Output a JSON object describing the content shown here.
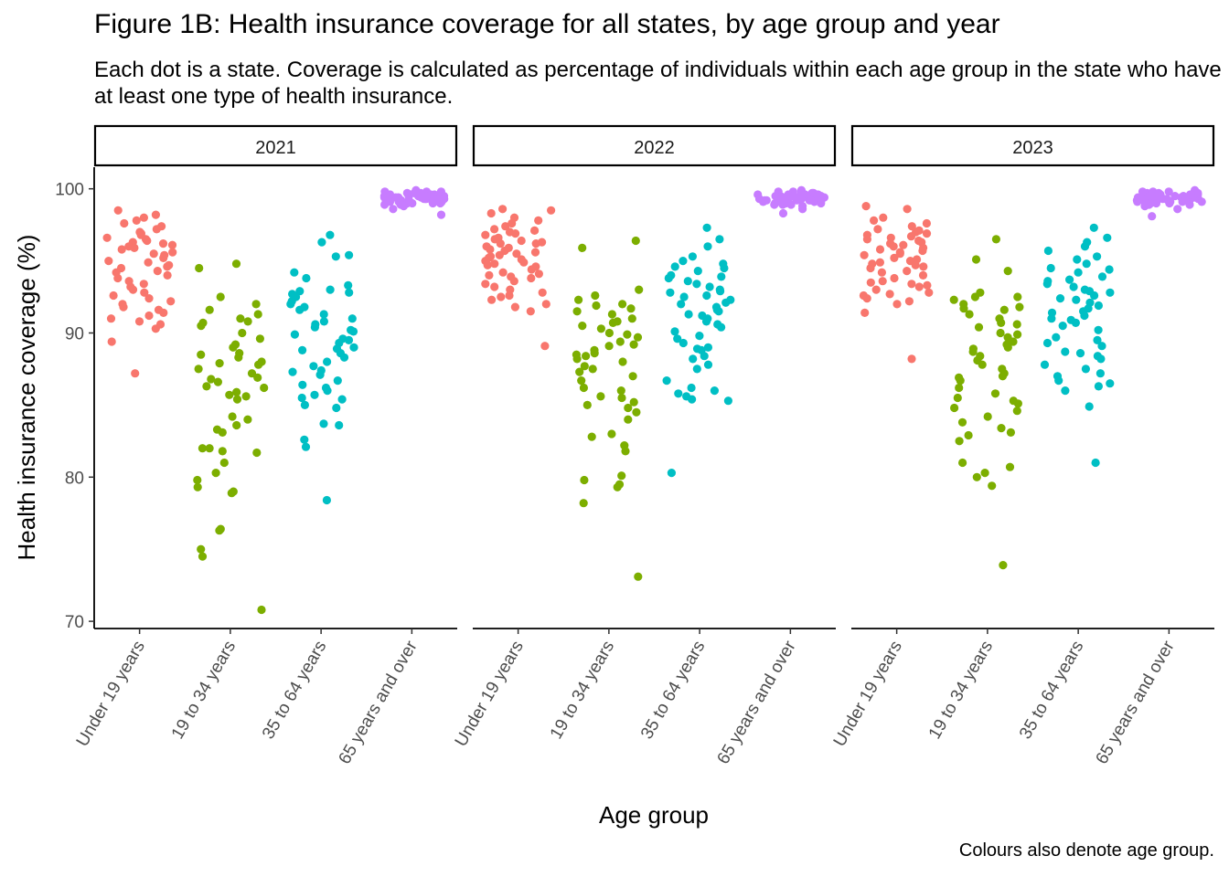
{
  "title": "Figure 1B: Health insurance coverage for all states, by age group and year",
  "subtitle": "Each dot is a state. Coverage is calculated as percentage of individuals within each age group in the state who have at least one type of health insurance.",
  "caption": "Colours also denote age group.",
  "chart_data": {
    "type": "scatter",
    "xlabel": "Age group",
    "ylabel": "Health insurance coverage (%)",
    "ylim": [
      69.5,
      101.5
    ],
    "yticks": [
      70,
      80,
      90,
      100
    ],
    "categories": [
      "Under 19 years",
      "19 to 34 years",
      "35 to 64 years",
      "65 years and over"
    ],
    "colors": [
      "#F8766D",
      "#7CAE00",
      "#00BFC4",
      "#C77CFF"
    ],
    "legend": "none",
    "grid": false,
    "panels": [
      {
        "label": "2021",
        "series": [
          {
            "category": "Under 19 years",
            "values": [
              98.5,
              98.2,
              98.0,
              97.8,
              97.6,
              97.4,
              97.2,
              97.0,
              96.9,
              96.8,
              96.6,
              96.5,
              96.4,
              96.3,
              96.2,
              96.0,
              95.9,
              95.8,
              95.6,
              95.5,
              95.4,
              95.2,
              95.0,
              94.9,
              94.7,
              94.5,
              94.3,
              94.2,
              94.0,
              93.8,
              93.6,
              93.4,
              93.2,
              93.0,
              92.8,
              92.6,
              92.4,
              92.2,
              92.0,
              91.8,
              91.6,
              91.4,
              91.2,
              91.0,
              90.8,
              90.6,
              90.3,
              89.4,
              87.2,
              96.1,
              94.6
            ]
          },
          {
            "category": "19 to 34 years",
            "values": [
              94.8,
              94.5,
              92.5,
              92.0,
              91.6,
              91.3,
              91.0,
              90.8,
              90.5,
              90.0,
              89.6,
              89.2,
              89.0,
              88.6,
              88.3,
              88.0,
              87.8,
              87.5,
              87.2,
              86.9,
              86.6,
              86.3,
              86.2,
              85.9,
              85.6,
              85.4,
              84.0,
              83.6,
              83.3,
              82.0,
              82.0,
              81.8,
              81.7,
              81.0,
              80.3,
              79.8,
              79.3,
              79.0,
              78.9,
              76.4,
              76.3,
              75.0,
              74.5,
              70.8,
              88.5,
              86.8,
              84.2,
              85.7,
              87.9,
              90.7,
              83.1
            ]
          },
          {
            "category": "35 to 64 years",
            "values": [
              96.8,
              96.3,
              95.4,
              95.3,
              94.2,
              93.8,
              93.3,
              93.0,
              92.8,
              92.7,
              92.5,
              92.2,
              92.0,
              91.8,
              91.3,
              90.8,
              90.6,
              90.4,
              90.2,
              89.9,
              89.6,
              89.3,
              89.0,
              88.6,
              88.3,
              88.0,
              87.7,
              87.4,
              87.1,
              86.7,
              86.4,
              86.0,
              85.7,
              85.5,
              85.4,
              83.7,
              83.6,
              82.6,
              82.1,
              78.4,
              91.0,
              89.5,
              88.9,
              87.3,
              90.1,
              86.2,
              92.9,
              84.8,
              88.8,
              91.6,
              85.0
            ]
          },
          {
            "category": "65 years and over",
            "values": [
              99.9,
              99.8,
              99.8,
              99.7,
              99.7,
              99.6,
              99.6,
              99.5,
              99.5,
              99.5,
              99.4,
              99.4,
              99.4,
              99.3,
              99.3,
              99.3,
              99.2,
              99.2,
              99.2,
              99.1,
              99.1,
              99.0,
              99.0,
              98.9,
              98.9,
              98.8,
              98.6,
              98.2,
              99.6,
              99.5,
              99.4,
              99.3,
              99.2,
              99.1,
              99.0,
              99.7,
              99.8,
              99.6,
              99.5,
              99.4,
              99.3,
              99.2,
              99.1,
              99.0,
              99.4,
              99.5,
              99.3,
              99.6,
              99.2,
              99.4,
              99.5
            ]
          }
        ]
      },
      {
        "label": "2022",
        "series": [
          {
            "category": "Under 19 years",
            "values": [
              98.6,
              98.5,
              98.3,
              98.0,
              97.8,
              97.6,
              97.4,
              97.2,
              97.0,
              96.9,
              96.8,
              96.6,
              96.4,
              96.3,
              96.2,
              96.0,
              95.8,
              95.6,
              95.5,
              95.4,
              95.3,
              95.2,
              95.0,
              94.9,
              94.8,
              94.6,
              94.4,
              94.2,
              94.0,
              93.8,
              93.6,
              93.4,
              93.2,
              93.0,
              92.8,
              92.6,
              92.5,
              92.3,
              92.0,
              91.8,
              91.5,
              89.1,
              96.5,
              95.7,
              94.1,
              97.1,
              95.9,
              93.9,
              96.2,
              94.7,
              95.1
            ]
          },
          {
            "category": "19 to 34 years",
            "values": [
              96.4,
              95.9,
              93.0,
              92.6,
              92.3,
              92.0,
              91.7,
              91.5,
              91.3,
              91.0,
              90.7,
              90.5,
              90.3,
              90.0,
              89.7,
              89.4,
              89.1,
              88.8,
              88.5,
              88.2,
              88.0,
              87.7,
              87.3,
              87.0,
              86.7,
              86.2,
              85.5,
              85.2,
              85.0,
              84.8,
              84.0,
              83.0,
              82.8,
              82.2,
              81.8,
              80.1,
              79.8,
              79.5,
              79.3,
              78.2,
              73.1,
              89.9,
              88.6,
              87.5,
              86.0,
              90.8,
              91.9,
              85.6,
              88.4,
              89.2,
              84.5
            ]
          },
          {
            "category": "35 to 64 years",
            "values": [
              97.3,
              96.5,
              96.0,
              95.3,
              95.0,
              94.8,
              94.5,
              94.3,
              94.0,
              93.8,
              93.6,
              93.4,
              93.2,
              92.9,
              92.6,
              92.3,
              92.1,
              92.0,
              91.8,
              91.6,
              91.3,
              91.0,
              90.8,
              90.4,
              90.1,
              89.8,
              89.3,
              89.0,
              88.8,
              88.4,
              88.2,
              87.8,
              87.5,
              86.2,
              86.0,
              85.8,
              85.6,
              85.4,
              85.3,
              80.3,
              92.5,
              91.2,
              90.6,
              93.0,
              89.6,
              94.6,
              88.9,
              86.7,
              91.5,
              92.8,
              93.9
            ]
          },
          {
            "category": "65 years and over",
            "values": [
              99.9,
              99.8,
              99.8,
              99.7,
              99.7,
              99.6,
              99.6,
              99.5,
              99.5,
              99.4,
              99.4,
              99.4,
              99.3,
              99.3,
              99.3,
              99.2,
              99.2,
              99.2,
              99.1,
              99.1,
              99.0,
              99.0,
              98.9,
              98.9,
              98.8,
              98.6,
              98.3,
              99.6,
              99.5,
              99.4,
              99.3,
              99.2,
              99.1,
              99.0,
              99.7,
              99.8,
              99.6,
              99.5,
              99.4,
              99.3,
              99.2,
              99.1,
              99.0,
              99.4,
              99.5,
              99.3,
              99.6,
              99.2,
              99.4,
              99.5,
              98.9
            ]
          }
        ]
      },
      {
        "label": "2023",
        "series": [
          {
            "category": "Under 19 years",
            "values": [
              98.8,
              98.6,
              98.0,
              97.8,
              97.6,
              97.4,
              97.2,
              97.0,
              96.9,
              96.8,
              96.6,
              96.5,
              96.4,
              96.2,
              96.0,
              95.8,
              95.7,
              95.6,
              95.4,
              95.2,
              95.0,
              94.8,
              94.6,
              94.5,
              94.3,
              94.2,
              94.0,
              93.8,
              93.6,
              93.4,
              93.2,
              93.0,
              92.8,
              92.6,
              92.4,
              92.2,
              92.0,
              91.4,
              88.2,
              96.3,
              95.9,
              94.7,
              93.5,
              95.1,
              97.1,
              96.7,
              94.9,
              93.3,
              92.7,
              95.5,
              96.1
            ]
          },
          {
            "category": "19 to 34 years",
            "values": [
              96.5,
              95.1,
              94.3,
              92.8,
              92.5,
              92.3,
              92.0,
              91.8,
              91.6,
              91.3,
              91.0,
              90.7,
              90.4,
              90.0,
              89.7,
              89.4,
              89.2,
              89.0,
              88.7,
              88.4,
              88.1,
              87.8,
              87.5,
              87.2,
              86.9,
              86.7,
              86.2,
              85.8,
              85.5,
              85.3,
              84.8,
              84.6,
              84.2,
              83.8,
              83.4,
              82.9,
              82.5,
              81.0,
              80.7,
              80.3,
              80.0,
              79.4,
              73.9,
              88.9,
              90.6,
              91.7,
              87.0,
              85.1,
              83.1,
              92.5,
              89.9
            ]
          },
          {
            "category": "35 to 64 years",
            "values": [
              97.3,
              96.6,
              96.3,
              96.0,
              95.3,
              95.1,
              94.8,
              94.5,
              94.2,
              93.9,
              93.7,
              93.4,
              93.0,
              92.8,
              92.6,
              92.3,
              92.1,
              91.9,
              91.7,
              91.5,
              91.2,
              91.0,
              90.7,
              90.5,
              90.2,
              89.7,
              89.3,
              89.1,
              88.7,
              88.4,
              88.2,
              87.8,
              87.5,
              87.0,
              86.7,
              86.5,
              86.0,
              84.9,
              81.0,
              92.4,
              94.4,
              93.2,
              91.4,
              90.9,
              88.6,
              86.3,
              95.7,
              93.6,
              92.9,
              89.5,
              87.2
            ]
          },
          {
            "category": "65 years and over",
            "values": [
              99.9,
              99.8,
              99.8,
              99.7,
              99.7,
              99.6,
              99.6,
              99.5,
              99.5,
              99.4,
              99.4,
              99.4,
              99.3,
              99.3,
              99.3,
              99.2,
              99.2,
              99.1,
              99.1,
              99.0,
              99.0,
              98.9,
              98.9,
              98.8,
              98.6,
              98.1,
              99.6,
              99.5,
              99.4,
              99.3,
              99.2,
              99.1,
              99.0,
              99.7,
              99.8,
              99.6,
              99.5,
              99.4,
              99.3,
              99.2,
              99.1,
              99.0,
              99.4,
              99.5,
              99.3,
              99.6,
              99.2,
              99.4,
              99.5,
              98.9,
              99.7
            ]
          }
        ]
      }
    ]
  }
}
